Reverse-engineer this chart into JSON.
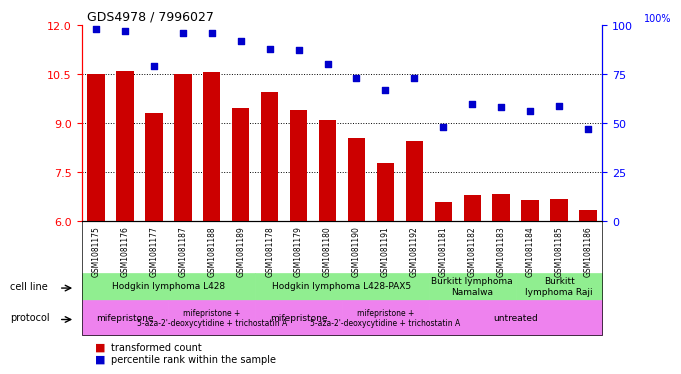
{
  "title": "GDS4978 / 7996027",
  "samples": [
    "GSM1081175",
    "GSM1081176",
    "GSM1081177",
    "GSM1081187",
    "GSM1081188",
    "GSM1081189",
    "GSM1081178",
    "GSM1081179",
    "GSM1081180",
    "GSM1081190",
    "GSM1081191",
    "GSM1081192",
    "GSM1081181",
    "GSM1081182",
    "GSM1081183",
    "GSM1081184",
    "GSM1081185",
    "GSM1081186"
  ],
  "transformed_count": [
    10.5,
    10.6,
    9.3,
    10.5,
    10.55,
    9.45,
    9.95,
    9.4,
    9.1,
    8.55,
    7.8,
    8.45,
    6.6,
    6.8,
    6.85,
    6.65,
    6.7,
    6.35
  ],
  "percentile_rank": [
    98,
    97,
    79,
    96,
    96,
    92,
    88,
    87,
    80,
    73,
    67,
    73,
    48,
    60,
    58,
    56,
    59,
    47
  ],
  "ylim_left": [
    6,
    12
  ],
  "ylim_right": [
    0,
    100
  ],
  "yticks_left": [
    6,
    7.5,
    9,
    10.5,
    12
  ],
  "yticks_right": [
    0,
    25,
    50,
    75,
    100
  ],
  "bar_color": "#cc0000",
  "dot_color": "#0000cc",
  "background_color": "#ffffff",
  "cell_line_groups": [
    {
      "label": "Hodgkin lymphoma L428",
      "start": 0,
      "end": 5,
      "color": "#90ee90"
    },
    {
      "label": "Hodgkin lymphoma L428-PAX5",
      "start": 6,
      "end": 11,
      "color": "#90ee90"
    },
    {
      "label": "Burkitt lymphoma\nNamalwa",
      "start": 12,
      "end": 14,
      "color": "#90ee90"
    },
    {
      "label": "Burkitt\nlymphoma Raji",
      "start": 15,
      "end": 17,
      "color": "#90ee90"
    }
  ],
  "protocol_groups": [
    {
      "label": "mifepristone",
      "start": 0,
      "end": 2,
      "color": "#ee82ee"
    },
    {
      "label": "mifepristone +\n5-aza-2'-deoxycytidine + trichostatin A",
      "start": 3,
      "end": 5,
      "color": "#ee82ee"
    },
    {
      "label": "mifepristone",
      "start": 6,
      "end": 8,
      "color": "#ee82ee"
    },
    {
      "label": "mifepristone +\n5-aza-2'-deoxycytidine + trichostatin A",
      "start": 9,
      "end": 11,
      "color": "#ee82ee"
    },
    {
      "label": "untreated",
      "start": 12,
      "end": 17,
      "color": "#ee82ee"
    }
  ],
  "legend_items": [
    {
      "label": "transformed count",
      "color": "#cc0000",
      "marker": "s"
    },
    {
      "label": "percentile rank within the sample",
      "color": "#0000cc",
      "marker": "s"
    }
  ]
}
